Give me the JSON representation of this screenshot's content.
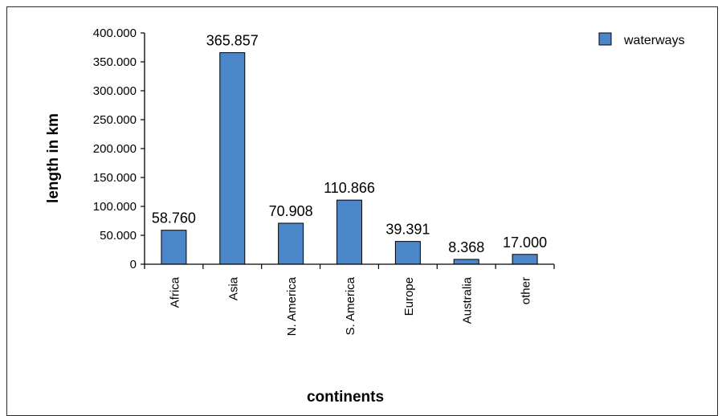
{
  "chart_data": {
    "type": "bar",
    "categories": [
      "Africa",
      "Asia",
      "N. America",
      "S. America",
      "Europe",
      "Australia",
      "other"
    ],
    "series": [
      {
        "name": "waterways",
        "values": [
          58760,
          365857,
          70908,
          110866,
          39391,
          8368,
          17000
        ],
        "data_labels": [
          "58.760",
          "365.857",
          "70.908",
          "110.866",
          "39.391",
          "8.368",
          "17.000"
        ],
        "color": "#4a86c8"
      }
    ],
    "ylim": [
      0,
      400000
    ],
    "yticks": [
      0,
      50000,
      100000,
      150000,
      200000,
      250000,
      300000,
      350000,
      400000
    ],
    "ytick_labels": [
      "0",
      "50.000",
      "100.000",
      "150.000",
      "200.000",
      "250.000",
      "300.000",
      "350.000",
      "400.000"
    ],
    "xlabel": "continents",
    "ylabel": "length in km",
    "legend_position": "top-right",
    "grid": false
  }
}
